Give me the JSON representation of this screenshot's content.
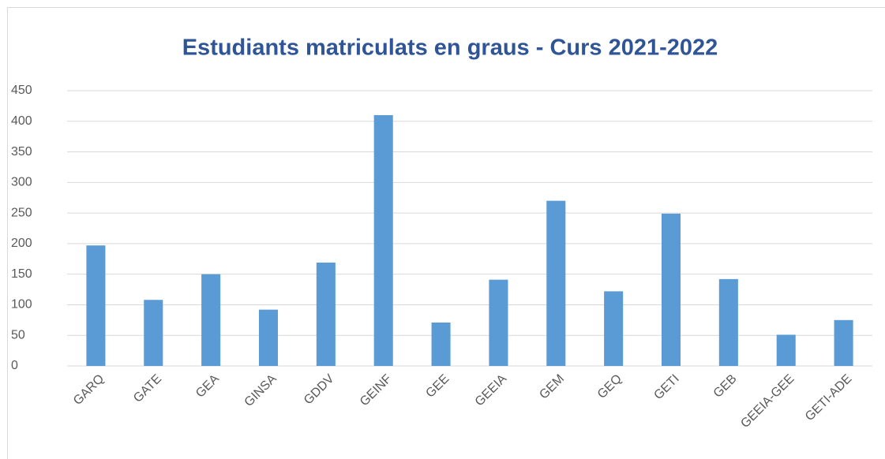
{
  "chart_data": {
    "type": "bar",
    "title": "Estudiants matriculats en graus - Curs 2021-2022",
    "categories": [
      "GARQ",
      "GATE",
      "GEA",
      "GINSA",
      "GDDV",
      "GEINF",
      "GEE",
      "GEEIA",
      "GEM",
      "GEQ",
      "GETI",
      "GEB",
      "GEEIA-GEE",
      "GETI-ADE"
    ],
    "values": [
      197,
      108,
      150,
      92,
      169,
      410,
      71,
      141,
      270,
      122,
      249,
      142,
      51,
      75
    ],
    "color": "#5b9bd5",
    "ylim": [
      0,
      450
    ],
    "yticks": [
      0,
      50,
      100,
      150,
      200,
      250,
      300,
      350,
      400,
      450
    ],
    "grid": true
  }
}
